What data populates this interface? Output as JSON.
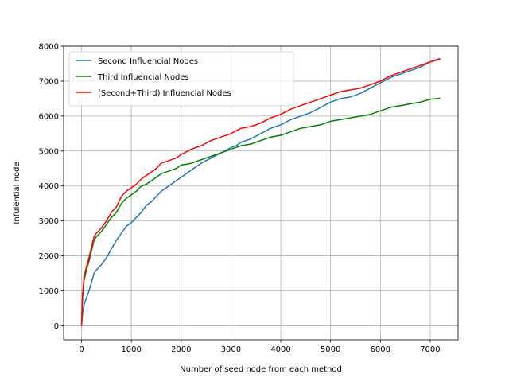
{
  "chart_data": {
    "type": "line",
    "title": "",
    "xlabel": "Number of seed node from each method",
    "ylabel": "Infulential node",
    "xlim": [
      -360,
      7560
    ],
    "ylim": [
      -400,
      8000
    ],
    "xticks": [
      0,
      1000,
      2000,
      3000,
      4000,
      5000,
      6000,
      7000
    ],
    "yticks": [
      0,
      1000,
      2000,
      3000,
      4000,
      5000,
      6000,
      7000,
      8000
    ],
    "grid": true,
    "legend_position": "top-left",
    "series": [
      {
        "name": "Second Influencial Nodes",
        "color": "#1f77b4",
        "x": [
          0,
          20,
          50,
          100,
          150,
          200,
          250,
          300,
          400,
          500,
          600,
          700,
          800,
          900,
          1000,
          1100,
          1200,
          1300,
          1400,
          1500,
          1600,
          1700,
          1800,
          1900,
          2000,
          2200,
          2400,
          2600,
          2800,
          3000,
          3100,
          3200,
          3400,
          3600,
          3800,
          4000,
          4200,
          4400,
          4600,
          4800,
          5000,
          5200,
          5400,
          5600,
          5800,
          6000,
          6200,
          6400,
          6600,
          6800,
          7000,
          7200
        ],
        "y": [
          0,
          350,
          600,
          800,
          1000,
          1250,
          1500,
          1600,
          1750,
          1950,
          2200,
          2450,
          2650,
          2850,
          2950,
          3100,
          3250,
          3450,
          3550,
          3700,
          3850,
          3950,
          4050,
          4150,
          4250,
          4450,
          4650,
          4800,
          4950,
          5100,
          5150,
          5250,
          5350,
          5500,
          5650,
          5750,
          5900,
          6000,
          6100,
          6250,
          6400,
          6500,
          6550,
          6650,
          6800,
          6950,
          7100,
          7200,
          7300,
          7400,
          7550,
          7620
        ]
      },
      {
        "name": "Third Influencial Nodes",
        "color": "#008000",
        "x": [
          0,
          20,
          50,
          100,
          150,
          200,
          250,
          300,
          400,
          500,
          600,
          700,
          800,
          900,
          1000,
          1100,
          1200,
          1300,
          1400,
          1500,
          1600,
          1700,
          1800,
          1900,
          2000,
          2200,
          2400,
          2600,
          2800,
          3000,
          3200,
          3400,
          3600,
          3800,
          4000,
          4200,
          4400,
          4600,
          4800,
          5000,
          5200,
          5400,
          5600,
          5800,
          6000,
          6200,
          6400,
          6600,
          6800,
          7000,
          7200
        ],
        "y": [
          0,
          800,
          1300,
          1600,
          1850,
          2150,
          2450,
          2550,
          2700,
          2900,
          3100,
          3250,
          3500,
          3650,
          3750,
          3850,
          4000,
          4050,
          4150,
          4250,
          4350,
          4400,
          4450,
          4500,
          4600,
          4650,
          4750,
          4850,
          4950,
          5050,
          5150,
          5200,
          5300,
          5400,
          5450,
          5550,
          5650,
          5700,
          5750,
          5850,
          5900,
          5950,
          6000,
          6050,
          6150,
          6250,
          6300,
          6350,
          6400,
          6480,
          6510
        ]
      },
      {
        "name": "(Second+Third) Influencial Nodes",
        "color": "#ff0000",
        "x": [
          0,
          20,
          50,
          100,
          150,
          200,
          250,
          300,
          400,
          500,
          600,
          700,
          800,
          900,
          1000,
          1100,
          1200,
          1300,
          1400,
          1500,
          1600,
          1700,
          1800,
          1900,
          2000,
          2200,
          2400,
          2600,
          2800,
          3000,
          3200,
          3400,
          3600,
          3800,
          4000,
          4200,
          4400,
          4600,
          4800,
          5000,
          5200,
          5400,
          5600,
          5800,
          6000,
          6200,
          6400,
          6600,
          6800,
          7000,
          7200
        ],
        "y": [
          0,
          900,
          1400,
          1700,
          1950,
          2250,
          2550,
          2650,
          2800,
          3000,
          3250,
          3400,
          3700,
          3850,
          3950,
          4050,
          4200,
          4300,
          4400,
          4500,
          4650,
          4700,
          4750,
          4800,
          4900,
          5050,
          5150,
          5300,
          5400,
          5500,
          5650,
          5700,
          5800,
          5950,
          6050,
          6200,
          6300,
          6400,
          6500,
          6600,
          6700,
          6750,
          6800,
          6900,
          7000,
          7150,
          7250,
          7350,
          7450,
          7550,
          7650
        ]
      }
    ]
  }
}
